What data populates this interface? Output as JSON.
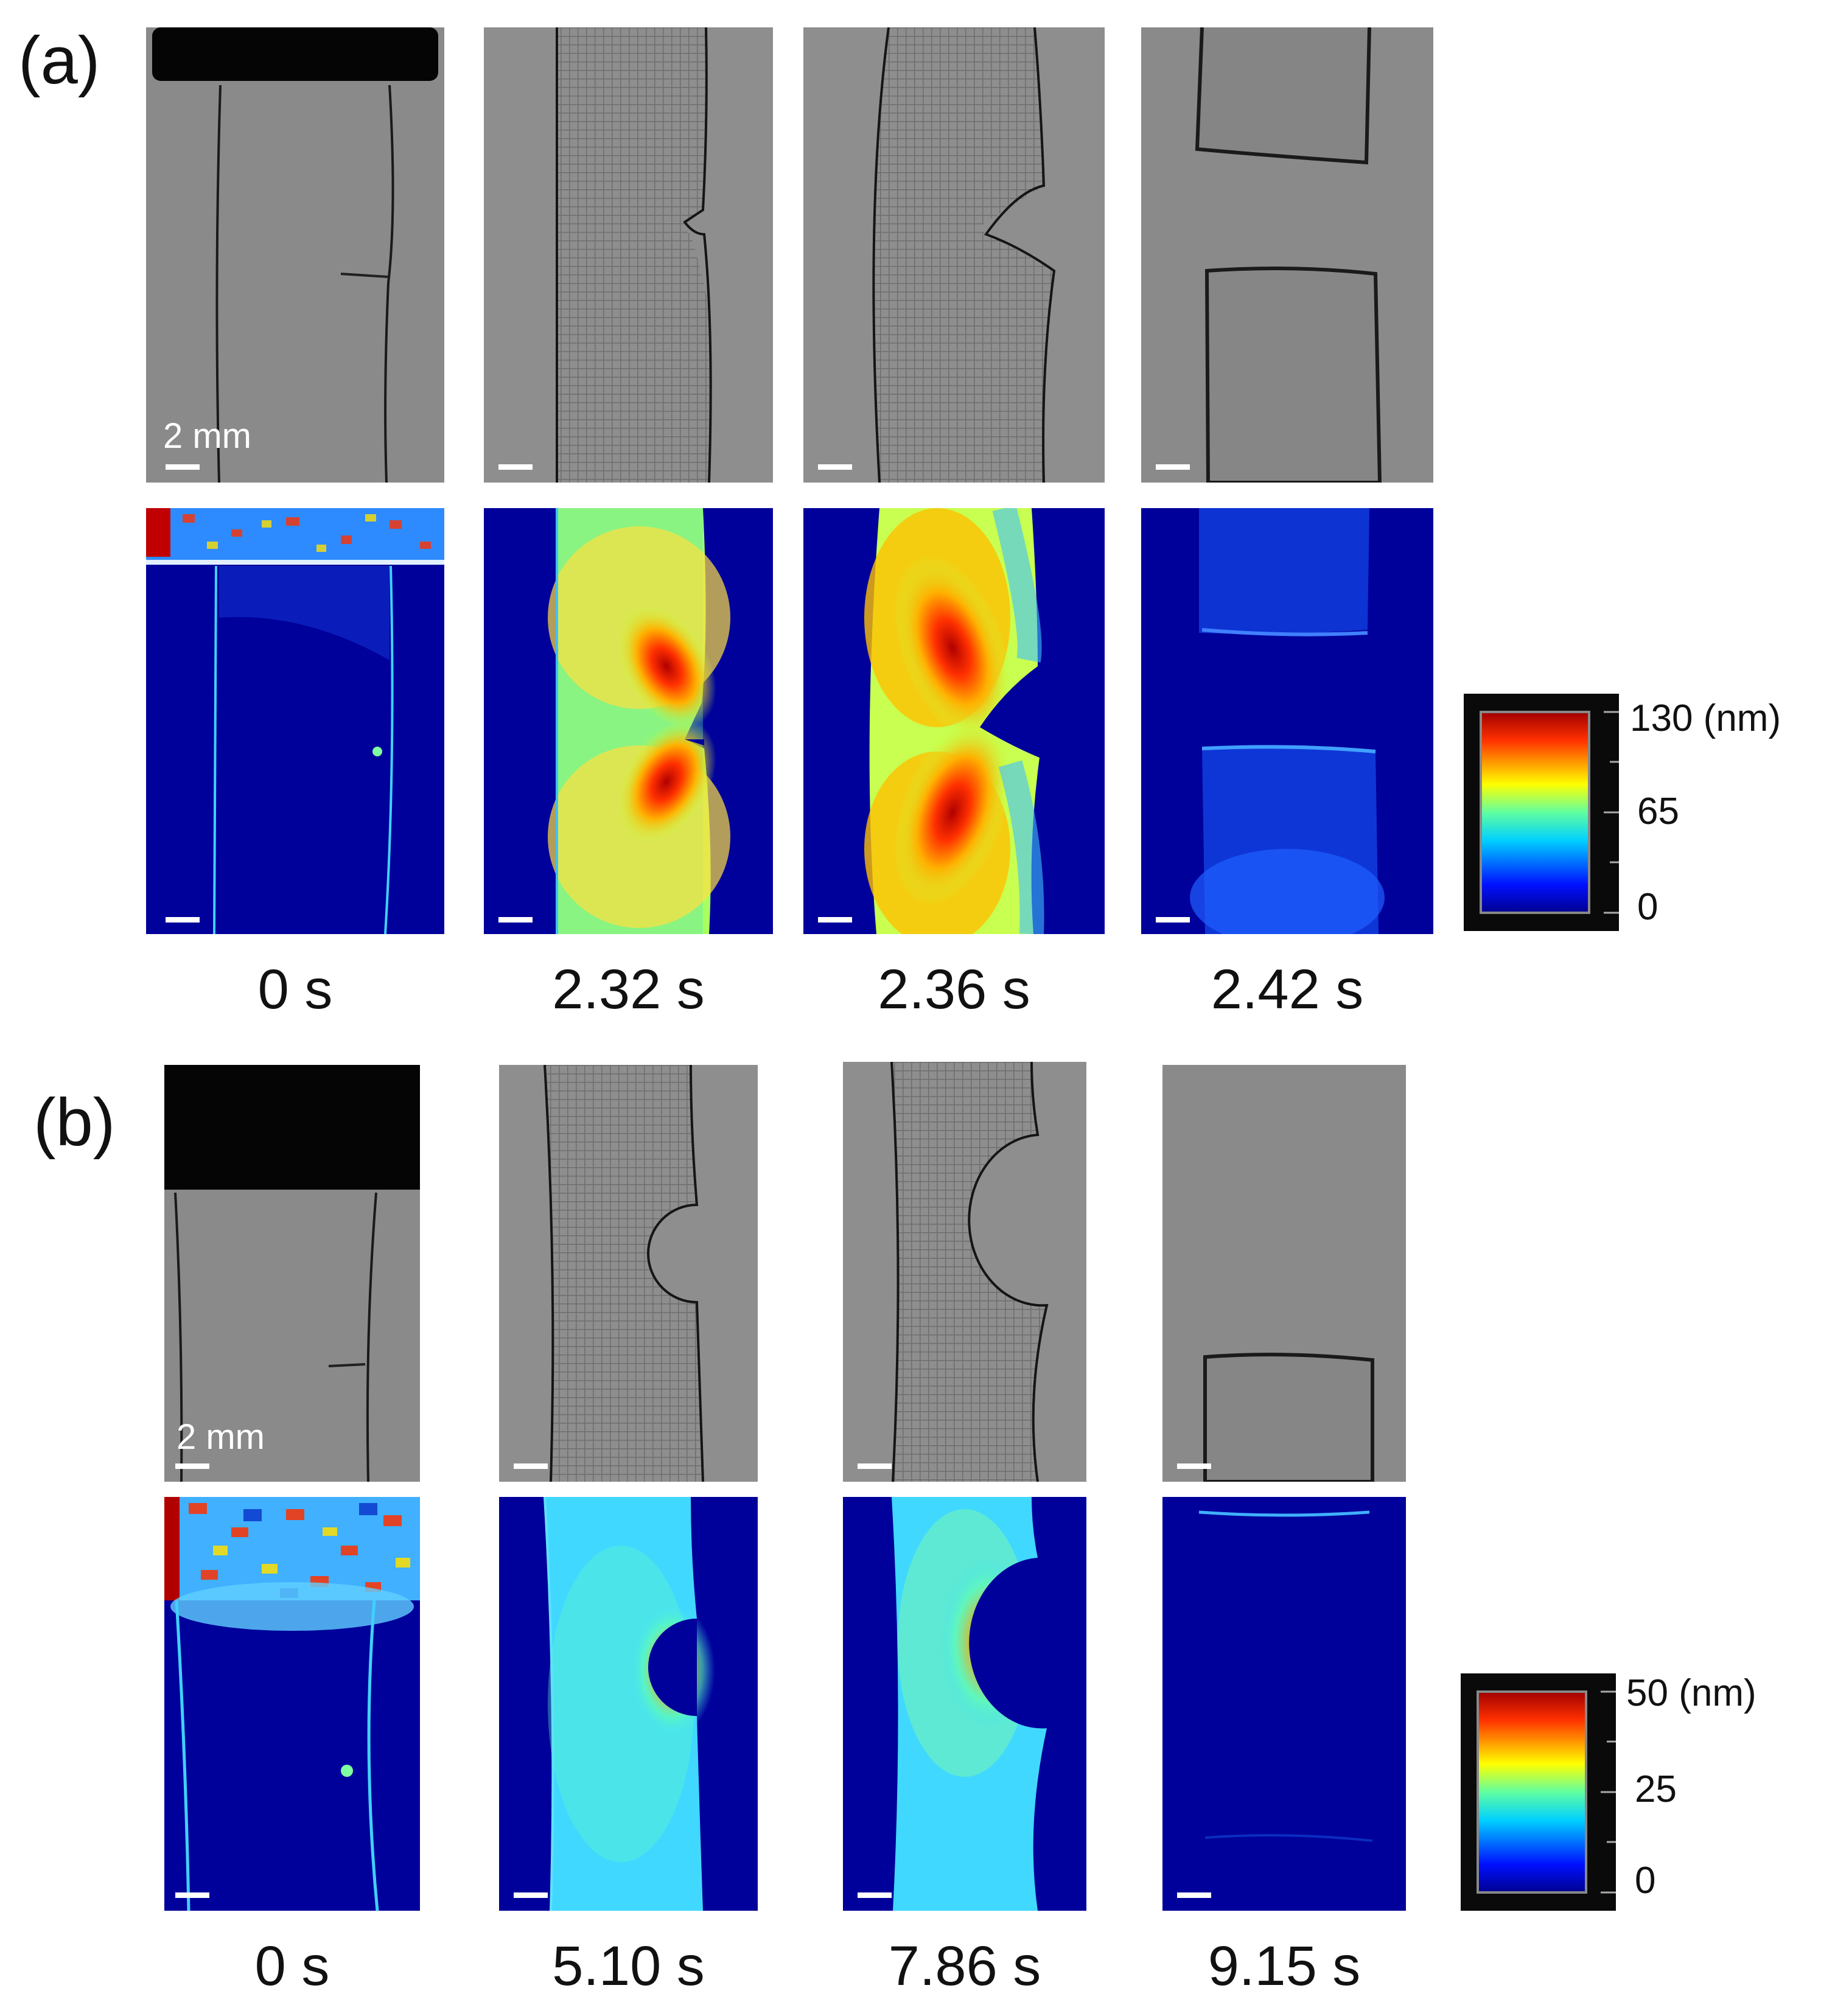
{
  "panels": {
    "a": {
      "label": "(a)",
      "scale_bar": "2 mm",
      "times": [
        "0 s",
        "2.32 s",
        "2.36 s",
        "2.42 s"
      ],
      "colorbar": {
        "max": "130 (nm)",
        "mid": "65",
        "min": "0"
      }
    },
    "b": {
      "label": "(b)",
      "scale_bar": "2 mm",
      "times": [
        "0 s",
        "5.10 s",
        "7.86 s",
        "9.15 s"
      ],
      "colorbar": {
        "max": "50 (nm)",
        "mid": "25",
        "min": "0"
      }
    }
  },
  "colors": {
    "photo_background": "#8a8a8a",
    "map_background": "#00009a",
    "colormap": [
      "#00008f",
      "#0040ff",
      "#00c0ff",
      "#40ffc0",
      "#c0ff40",
      "#ffc000",
      "#ff4000",
      "#a00000"
    ]
  }
}
